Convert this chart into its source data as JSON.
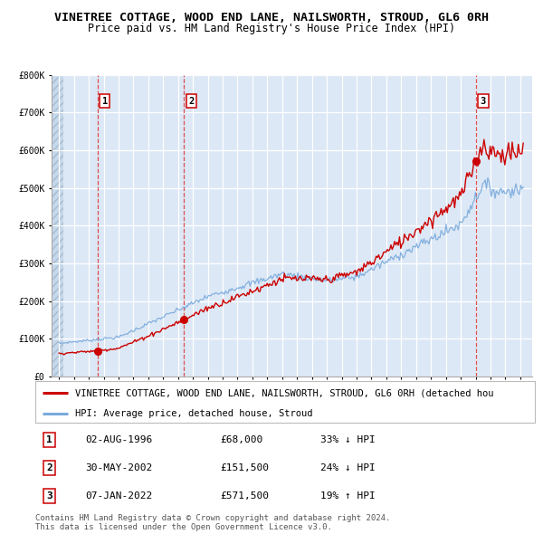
{
  "title": "VINETREE COTTAGE, WOOD END LANE, NAILSWORTH, STROUD, GL6 0RH",
  "subtitle": "Price paid vs. HM Land Registry's House Price Index (HPI)",
  "ylim": [
    0,
    800000
  ],
  "yticks": [
    0,
    100000,
    200000,
    300000,
    400000,
    500000,
    600000,
    700000,
    800000
  ],
  "ytick_labels": [
    "£0",
    "£100K",
    "£200K",
    "£300K",
    "£400K",
    "£500K",
    "£600K",
    "£700K",
    "£800K"
  ],
  "background_color": "#ffffff",
  "plot_bg_color": "#dce8f5",
  "hatch_region_color": "#c5d8ec",
  "grid_color": "#ffffff",
  "sale_color": "#cc0000",
  "hpi_color": "#7aaadd",
  "purchase_dates": [
    1996.58,
    2002.41,
    2022.02
  ],
  "purchase_prices": [
    68000,
    151500,
    571500
  ],
  "purchase_labels": [
    "1",
    "2",
    "3"
  ],
  "legend_sale_label": "VINETREE COTTAGE, WOOD END LANE, NAILSWORTH, STROUD, GL6 0RH (detached hou",
  "legend_hpi_label": "HPI: Average price, detached house, Stroud",
  "table_rows": [
    [
      "1",
      "02-AUG-1996",
      "£68,000",
      "33% ↓ HPI"
    ],
    [
      "2",
      "30-MAY-2002",
      "£151,500",
      "24% ↓ HPI"
    ],
    [
      "3",
      "07-JAN-2022",
      "£571,500",
      "19% ↑ HPI"
    ]
  ],
  "footer": "Contains HM Land Registry data © Crown copyright and database right 2024.\nThis data is licensed under the Open Government Licence v3.0.",
  "title_fontsize": 9.5,
  "subtitle_fontsize": 8.5,
  "tick_fontsize": 7,
  "legend_fontsize": 7.5,
  "table_fontsize": 8
}
